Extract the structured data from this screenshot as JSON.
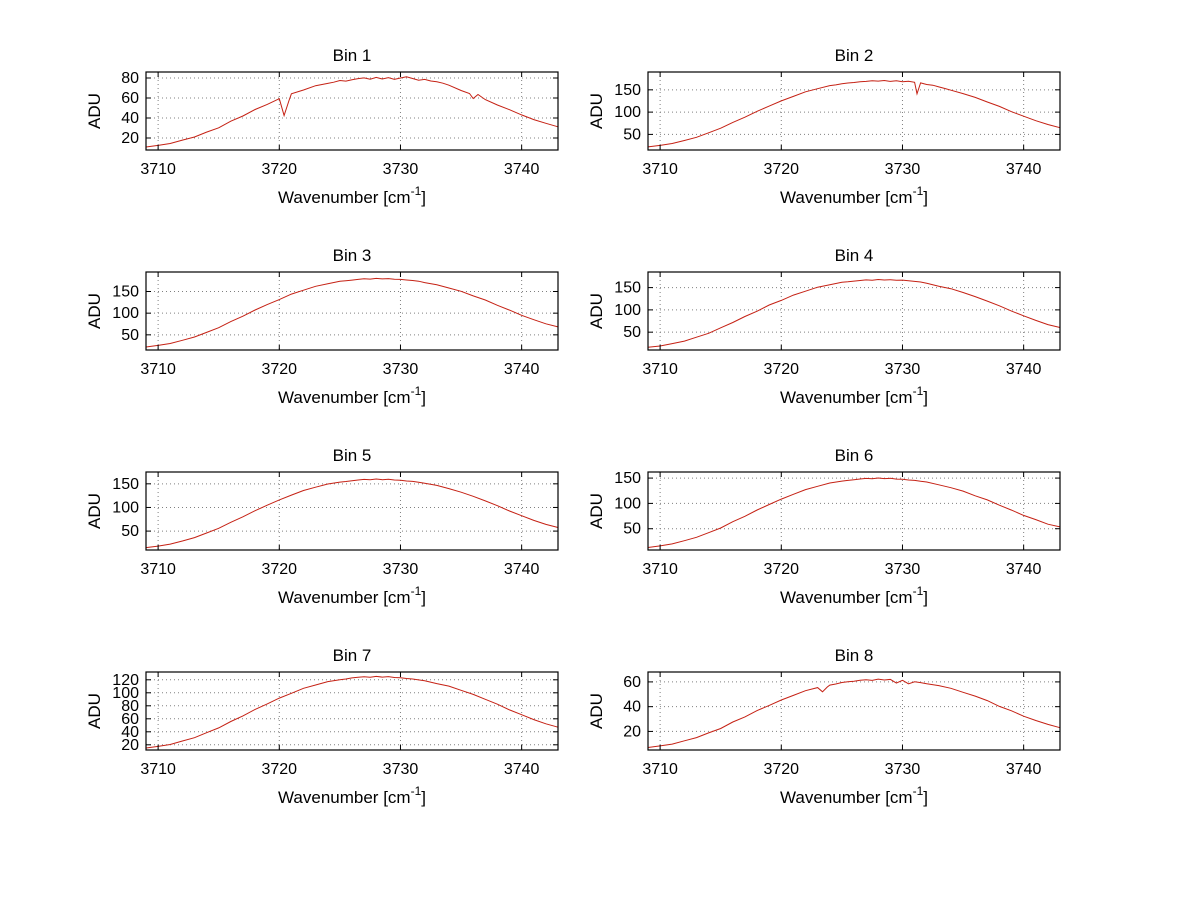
{
  "figure": {
    "background": "#ffffff",
    "line_color": "#c52114",
    "grid_color": "#808080",
    "axis_color": "#000000",
    "text_color": "#000000",
    "layout": "4x2 subplot grid"
  },
  "chart_data": [
    {
      "type": "line",
      "title": "Bin 1",
      "xlabel": "Wavenumber [cm-1]",
      "xlabel_parts": [
        "Wavenumber [cm",
        "-1",
        "]"
      ],
      "ylabel": "ADU",
      "xlim": [
        3709,
        3743
      ],
      "ylim": [
        8,
        86
      ],
      "xticks": [
        3710,
        3720,
        3730,
        3740
      ],
      "yticks": [
        20,
        40,
        60,
        80
      ],
      "grid": true,
      "x": [
        3709,
        3710,
        3711,
        3712,
        3713,
        3714,
        3715,
        3716,
        3717,
        3718,
        3719,
        3720,
        3720.4,
        3720.8,
        3721,
        3722,
        3723,
        3724,
        3724.5,
        3725,
        3725.5,
        3726,
        3726.5,
        3727,
        3727.5,
        3728,
        3728.5,
        3729,
        3729.5,
        3730,
        3730.5,
        3731,
        3731.5,
        3732,
        3732.5,
        3733,
        3733.5,
        3734,
        3735,
        3735.7,
        3736,
        3736.4,
        3737,
        3738,
        3739,
        3740,
        3741,
        3742,
        3743
      ],
      "y": [
        11.0,
        12.6,
        14.5,
        17.9,
        21.0,
        25.9,
        30.2,
        36.8,
        42.0,
        48.5,
        53.6,
        59.3,
        42.5,
        57.5,
        64.2,
        68.0,
        72.3,
        74.6,
        75.8,
        77.5,
        76.9,
        78.2,
        79.4,
        80.1,
        78.8,
        80.6,
        79.0,
        80.4,
        78.6,
        80.0,
        81.2,
        79.5,
        77.8,
        78.6,
        77.0,
        76.2,
        74.8,
        72.8,
        67.5,
        64.5,
        59.5,
        63.5,
        58.4,
        53.0,
        48.3,
        43.1,
        38.4,
        34.7,
        31.2
      ]
    },
    {
      "type": "line",
      "title": "Bin 2",
      "xlabel": "Wavenumber [cm-1]",
      "xlabel_parts": [
        "Wavenumber [cm",
        "-1",
        "]"
      ],
      "ylabel": "ADU",
      "xlim": [
        3709,
        3743
      ],
      "ylim": [
        15,
        190
      ],
      "xticks": [
        3710,
        3720,
        3730,
        3740
      ],
      "yticks": [
        50,
        100,
        150
      ],
      "grid": true,
      "x": [
        3709,
        3710,
        3711,
        3712,
        3713,
        3714,
        3715,
        3716,
        3717,
        3718,
        3719,
        3720,
        3721,
        3722,
        3723,
        3724,
        3724.5,
        3725,
        3725.5,
        3726,
        3726.5,
        3727,
        3727.5,
        3728,
        3728.5,
        3729,
        3729.5,
        3730,
        3730.5,
        3731,
        3731.2,
        3731.5,
        3732,
        3732.5,
        3733,
        3733.5,
        3734,
        3735,
        3736,
        3737,
        3738,
        3739,
        3740,
        3741,
        3742,
        3743
      ],
      "y": [
        22.0,
        25.3,
        29.5,
        36.4,
        43.5,
        53.6,
        63.8,
        76.9,
        88.6,
        101.9,
        113.5,
        125.2,
        135.3,
        145.5,
        152.6,
        159.4,
        161.0,
        163.5,
        165.4,
        166.5,
        168.3,
        169.0,
        170.4,
        169.6,
        171.0,
        169.0,
        170.2,
        168.1,
        169.3,
        167.0,
        141.0,
        165.5,
        162.0,
        160.3,
        156.5,
        153.0,
        149.2,
        141.6,
        133.0,
        122.8,
        112.9,
        101.0,
        90.9,
        80.7,
        72.3,
        65.1
      ]
    },
    {
      "type": "line",
      "title": "Bin 3",
      "xlabel": "Wavenumber [cm-1]",
      "xlabel_parts": [
        "Wavenumber [cm",
        "-1",
        "]"
      ],
      "ylabel": "ADU",
      "xlim": [
        3709,
        3743
      ],
      "ylim": [
        15,
        195
      ],
      "xticks": [
        3710,
        3720,
        3730,
        3740
      ],
      "yticks": [
        50,
        100,
        150
      ],
      "grid": true,
      "x": [
        3709,
        3710,
        3711,
        3712,
        3713,
        3714,
        3715,
        3716,
        3717,
        3718,
        3719,
        3720,
        3721,
        3722,
        3723,
        3724,
        3725,
        3725.5,
        3726,
        3726.5,
        3727,
        3727.5,
        3728,
        3728.5,
        3729,
        3729.5,
        3730,
        3730.5,
        3731,
        3731.5,
        3732,
        3733,
        3734,
        3735,
        3736,
        3737,
        3738,
        3739,
        3740,
        3741,
        3742,
        3743
      ],
      "y": [
        22.0,
        25.6,
        30.0,
        37.4,
        45.0,
        55.7,
        66.5,
        80.6,
        93.1,
        107.2,
        119.8,
        131.4,
        143.9,
        153.0,
        162.1,
        168.0,
        173.8,
        175.0,
        176.3,
        178.0,
        179.5,
        178.6,
        180.2,
        179.0,
        179.8,
        178.2,
        177.9,
        176.5,
        175.3,
        173.8,
        170.5,
        165.4,
        158.0,
        150.5,
        139.8,
        130.4,
        118.2,
        107.0,
        95.0,
        84.9,
        75.5,
        68.2
      ]
    },
    {
      "type": "line",
      "title": "Bin 4",
      "xlabel": "Wavenumber [cm-1]",
      "xlabel_parts": [
        "Wavenumber [cm",
        "-1",
        "]"
      ],
      "ylabel": "ADU",
      "xlim": [
        3709,
        3743
      ],
      "ylim": [
        10,
        185
      ],
      "xticks": [
        3710,
        3720,
        3730,
        3740
      ],
      "yticks": [
        50,
        100,
        150
      ],
      "grid": true,
      "x": [
        3709,
        3710,
        3711,
        3712,
        3713,
        3714,
        3715,
        3716,
        3717,
        3718,
        3719,
        3720,
        3721,
        3722,
        3723,
        3724,
        3725,
        3725.5,
        3726,
        3726.5,
        3727,
        3727.5,
        3728,
        3728.5,
        3729,
        3729.5,
        3730,
        3730.5,
        3731,
        3731.5,
        3732,
        3733,
        3734,
        3735,
        3736,
        3737,
        3738,
        3739,
        3740,
        3741,
        3742,
        3743
      ],
      "y": [
        16.0,
        19.0,
        24.3,
        30.0,
        38.8,
        47.5,
        59.8,
        71.6,
        85.2,
        97.0,
        110.9,
        121.2,
        133.2,
        142.0,
        150.9,
        156.4,
        161.9,
        163.0,
        164.5,
        166.0,
        167.3,
        166.6,
        168.2,
        167.0,
        167.8,
        166.3,
        166.9,
        165.2,
        164.0,
        162.5,
        159.6,
        153.2,
        147.6,
        138.9,
        129.9,
        119.6,
        109.2,
        97.2,
        86.8,
        76.5,
        67.0,
        60.5
      ]
    },
    {
      "type": "line",
      "title": "Bin 5",
      "xlabel": "Wavenumber [cm-1]",
      "xlabel_parts": [
        "Wavenumber [cm",
        "-1",
        "]"
      ],
      "ylabel": "ADU",
      "xlim": [
        3709,
        3743
      ],
      "ylim": [
        10,
        175
      ],
      "xticks": [
        3710,
        3720,
        3730,
        3740
      ],
      "yticks": [
        50,
        100,
        150
      ],
      "grid": true,
      "x": [
        3709,
        3710,
        3711,
        3712,
        3713,
        3714,
        3715,
        3716,
        3717,
        3718,
        3719,
        3720,
        3721,
        3722,
        3723,
        3724,
        3725,
        3725.5,
        3726,
        3726.5,
        3727,
        3727.5,
        3728,
        3728.5,
        3729,
        3729.5,
        3730,
        3730.5,
        3731,
        3731.5,
        3732,
        3733,
        3734,
        3735,
        3736,
        3737,
        3738,
        3739,
        3740,
        3741,
        3742,
        3743
      ],
      "y": [
        15.0,
        18.3,
        22.5,
        29.0,
        36.2,
        45.9,
        55.9,
        68.7,
        80.2,
        93.2,
        104.8,
        116.0,
        126.1,
        135.9,
        142.9,
        149.6,
        153.6,
        155.0,
        156.6,
        158.0,
        159.4,
        158.5,
        160.1,
        158.8,
        159.6,
        158.0,
        157.4,
        156.0,
        155.1,
        153.4,
        151.2,
        146.6,
        139.8,
        132.2,
        123.7,
        113.9,
        103.8,
        92.6,
        82.5,
        72.7,
        64.2,
        57.5
      ]
    },
    {
      "type": "line",
      "title": "Bin 6",
      "xlabel": "Wavenumber [cm-1]",
      "xlabel_parts": [
        "Wavenumber [cm",
        "-1",
        "]"
      ],
      "ylabel": "ADU",
      "xlim": [
        3709,
        3743
      ],
      "ylim": [
        8,
        162
      ],
      "xticks": [
        3710,
        3720,
        3730,
        3740
      ],
      "yticks": [
        50,
        100,
        150
      ],
      "grid": true,
      "x": [
        3709,
        3710,
        3711,
        3712,
        3713,
        3714,
        3715,
        3716,
        3717,
        3718,
        3719,
        3720,
        3721,
        3722,
        3723,
        3724,
        3725,
        3725.5,
        3726,
        3726.5,
        3727,
        3727.5,
        3728,
        3728.5,
        3729,
        3729.5,
        3730,
        3730.5,
        3731,
        3731.5,
        3732,
        3733,
        3734,
        3735,
        3736,
        3737,
        3738,
        3739,
        3740,
        3741,
        3742,
        3743
      ],
      "y": [
        13.0,
        16.1,
        20.0,
        26.3,
        33.0,
        42.2,
        51.5,
        63.9,
        74.6,
        86.9,
        97.8,
        108.5,
        118.0,
        127.2,
        133.8,
        140.2,
        144.0,
        145.5,
        146.8,
        148.2,
        149.4,
        148.6,
        150.2,
        148.9,
        149.6,
        148.0,
        147.5,
        146.2,
        145.4,
        143.6,
        142.3,
        136.8,
        131.0,
        124.3,
        115.0,
        106.9,
        96.4,
        86.8,
        76.3,
        68.0,
        59.0,
        53.7
      ]
    },
    {
      "type": "line",
      "title": "Bin 7",
      "xlabel": "Wavenumber [cm-1]",
      "xlabel_parts": [
        "Wavenumber [cm",
        "-1",
        "]"
      ],
      "ylabel": "ADU",
      "xlim": [
        3709,
        3743
      ],
      "ylim": [
        12,
        132
      ],
      "xticks": [
        3710,
        3720,
        3730,
        3740
      ],
      "yticks": [
        20,
        40,
        60,
        80,
        100,
        120
      ],
      "grid": true,
      "x": [
        3709,
        3710,
        3711,
        3712,
        3713,
        3714,
        3715,
        3716,
        3717,
        3718,
        3719,
        3720,
        3721,
        3722,
        3723,
        3724,
        3725,
        3725.5,
        3726,
        3726.5,
        3727,
        3727.5,
        3728,
        3728.5,
        3729,
        3729.5,
        3730,
        3730.5,
        3731,
        3731.5,
        3732,
        3733,
        3734,
        3735,
        3736,
        3737,
        3738,
        3739,
        3740,
        3741,
        3742,
        3743
      ],
      "y": [
        15.0,
        17.5,
        20.5,
        25.8,
        31.0,
        38.6,
        46.0,
        55.9,
        64.4,
        74.5,
        83.0,
        91.8,
        99.2,
        106.9,
        112.0,
        117.3,
        120.1,
        121.3,
        122.9,
        123.8,
        124.7,
        124.0,
        125.3,
        124.2,
        124.9,
        123.6,
        123.1,
        122.0,
        121.2,
        119.8,
        118.4,
        114.2,
        110.3,
        103.8,
        97.5,
        90.0,
        82.5,
        73.7,
        66.3,
        58.7,
        52.3,
        47.1
      ]
    },
    {
      "type": "line",
      "title": "Bin 8",
      "xlabel": "Wavenumber [cm-1]",
      "xlabel_parts": [
        "Wavenumber [cm",
        "-1",
        "]"
      ],
      "ylabel": "ADU",
      "xlim": [
        3709,
        3743
      ],
      "ylim": [
        5,
        68
      ],
      "xticks": [
        3710,
        3720,
        3730,
        3740
      ],
      "yticks": [
        20,
        40,
        60
      ],
      "grid": true,
      "x": [
        3709,
        3710,
        3711,
        3712,
        3713,
        3714,
        3715,
        3716,
        3717,
        3718,
        3719,
        3720,
        3721,
        3722,
        3723,
        3723.4,
        3723.8,
        3724,
        3724.5,
        3725,
        3725.5,
        3726,
        3726.5,
        3727,
        3727.5,
        3728,
        3728.5,
        3729,
        3729.5,
        3730,
        3730.5,
        3731,
        3731.5,
        3732,
        3733,
        3734,
        3735,
        3736,
        3737,
        3738,
        3739,
        3740,
        3741,
        3742,
        3743
      ],
      "y": [
        7.0,
        8.3,
        9.8,
        12.4,
        15.0,
        18.8,
        22.4,
        27.6,
        31.7,
        36.8,
        41.0,
        45.4,
        49.1,
        52.9,
        55.4,
        52.0,
        55.9,
        57.4,
        58.3,
        59.5,
        60.2,
        60.6,
        61.4,
        61.8,
        61.2,
        62.3,
        61.5,
        62.0,
        59.0,
        61.3,
        58.5,
        60.1,
        59.4,
        58.5,
        57.0,
        54.8,
        51.6,
        48.5,
        44.9,
        40.2,
        36.7,
        32.3,
        28.8,
        25.7,
        23.0
      ]
    }
  ]
}
